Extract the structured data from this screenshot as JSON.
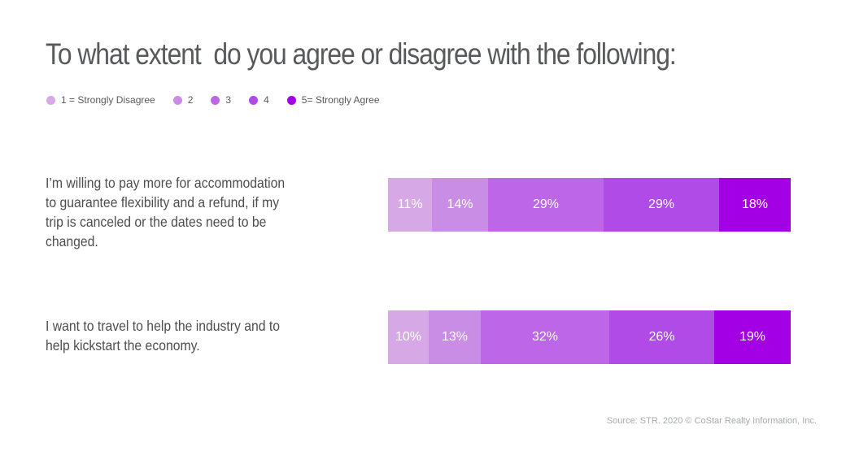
{
  "title": "To what extent  do you agree or disagree with the following:",
  "source": "Source: STR. 2020 © CoStar Realty Information, Inc.",
  "colors": {
    "text": "#58595b",
    "scale": [
      "#d6a8e6",
      "#ca8de6",
      "#bd67e8",
      "#b04be8",
      "#a300e5"
    ]
  },
  "chart_data": {
    "type": "bar",
    "orientation": "horizontal",
    "stacked": true,
    "units": "%",
    "legend": [
      "1 = Strongly Disagree",
      "2",
      "3",
      "4",
      "5= Strongly Agree"
    ],
    "legend_position": "top-left",
    "categories": [
      "I’m willing to pay more for accommodation to guarantee flexibility and a refund, if my trip is canceled or the dates need to be changed.",
      "I want to travel to help the industry and to help kickstart the economy."
    ],
    "series": [
      {
        "name": "1 = Strongly Disagree",
        "values": [
          11,
          10
        ],
        "labels": [
          "11%",
          "10%"
        ]
      },
      {
        "name": "2",
        "values": [
          14,
          13
        ],
        "labels": [
          "14%",
          "13%"
        ]
      },
      {
        "name": "3",
        "values": [
          29,
          32
        ],
        "labels": [
          "29%",
          "32%"
        ]
      },
      {
        "name": "4",
        "values": [
          29,
          26
        ],
        "labels": [
          "29%",
          "26%"
        ]
      },
      {
        "name": "5= Strongly Agree",
        "values": [
          18,
          19
        ],
        "labels": [
          "18%",
          "19%"
        ]
      }
    ]
  }
}
